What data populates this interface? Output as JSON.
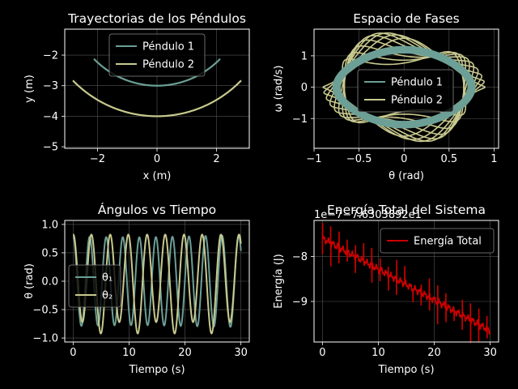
{
  "chart_data": [
    {
      "type": "line",
      "title": "Trayectorias de los Péndulos",
      "xlabel": "x (m)",
      "ylabel": "y (m)",
      "xlim": [
        -3.1,
        3.1
      ],
      "ylim": [
        -5.05,
        -1.15
      ],
      "xticks": [
        -2,
        0,
        2
      ],
      "yticks": [
        -5,
        -4,
        -3,
        -2
      ],
      "grid": true,
      "legend": "top-center",
      "series": [
        {
          "name": "Péndulo 1",
          "color": "#6c9f96",
          "length": 3.0,
          "theta_max": 0.785
        },
        {
          "name": "Péndulo 2",
          "color": "#c8c98e",
          "length": 4.0,
          "theta_max": 0.785
        }
      ]
    },
    {
      "type": "line",
      "title": "Espacio de Fases",
      "xlabel": "θ (rad)",
      "ylabel": "ω (rad/s)",
      "xlim": [
        -1.0,
        1.05
      ],
      "ylim": [
        -1.95,
        1.85
      ],
      "xticks": [
        -1.0,
        -0.5,
        0.0,
        0.5,
        1.0
      ],
      "ytick_labels": [
        "−1",
        "0",
        "1"
      ],
      "yticks": [
        -1,
        0,
        1
      ],
      "grid": true,
      "legend": "center",
      "series": [
        {
          "name": "Péndulo 1",
          "color": "#6c9f96",
          "theta_amp": 0.78,
          "omega_amp": 1.22
        },
        {
          "name": "Péndulo 2",
          "color": "#c8c98e",
          "theta_amp": 0.84,
          "omega_amp": 1.48
        }
      ]
    },
    {
      "type": "line",
      "title": "Ángulos vs Tiempo",
      "xlabel": "Tiempo (s)",
      "ylabel": "θ (rad)",
      "xlim": [
        -1.5,
        31.5
      ],
      "ylim": [
        -1.07,
        1.07
      ],
      "xticks": [
        0,
        10,
        20,
        30
      ],
      "ytick_labels": [
        "−1.0",
        "−0.5",
        "0.0",
        "0.5",
        "1.0"
      ],
      "yticks": [
        -1.0,
        -0.5,
        0.0,
        0.5,
        1.0
      ],
      "grid": true,
      "legend": "center-left",
      "series": [
        {
          "name": "θ₁",
          "color": "#6c9f96",
          "amplitude": 0.79,
          "period_s": 2.96
        },
        {
          "name": "θ₂",
          "color": "#c8c98e",
          "amplitude": 0.82,
          "period_s": 3.3
        }
      ]
    },
    {
      "type": "line",
      "title": "Energía Total del Sistema",
      "offset_label": "1e−7−7.6303892e1",
      "xlabel": "Tiempo (s)",
      "ylabel": "Energía (J)",
      "xlim": [
        -1.5,
        31.5
      ],
      "ylim": [
        -9.9,
        -7.2
      ],
      "xticks": [
        0,
        10,
        20,
        30
      ],
      "ytick_labels": [
        "−9",
        "−8"
      ],
      "yticks": [
        -9,
        -8
      ],
      "grid": true,
      "legend": "top-right",
      "series": [
        {
          "name": "Energía Total",
          "color": "#cc0000",
          "start": -7.6,
          "end": -9.65
        }
      ]
    }
  ]
}
